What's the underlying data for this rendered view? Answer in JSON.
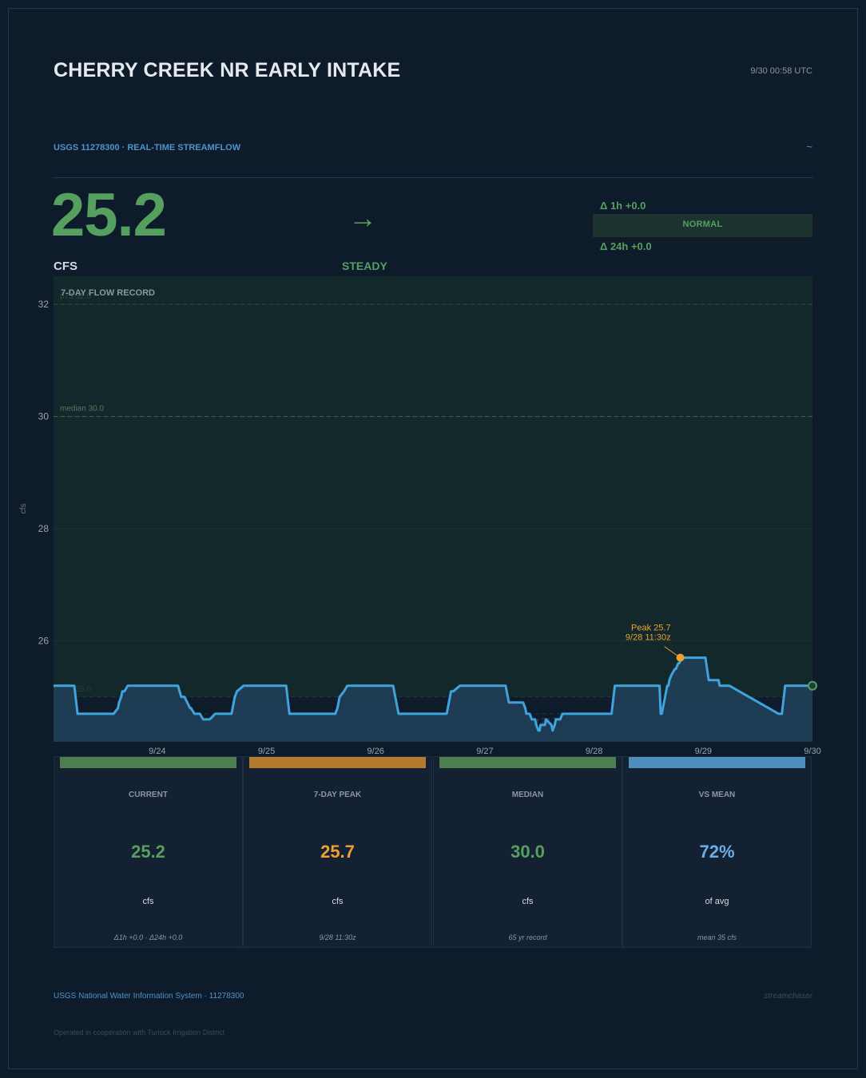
{
  "header": {
    "title": "CHERRY CREEK NR EARLY INTAKE",
    "timestamp": "9/30  00:58 UTC",
    "subtitle": "USGS 11278300  ·  REAL-TIME STREAMFLOW",
    "tilde": "~"
  },
  "current": {
    "value": "25.2",
    "unit": "CFS",
    "trend_arrow": "→",
    "trend_label": "STEADY",
    "delta_1h": "Δ 1h  +0.0",
    "delta_24h": "Δ 24h  +0.0",
    "status": "NORMAL"
  },
  "colors": {
    "accent_green": "#56a05f",
    "peak_orange": "#f0a030",
    "line_blue": "#3fa3dc",
    "mean_blue": "#6ab0e8"
  },
  "chart_data": {
    "type": "line",
    "title": "7-DAY FLOW RECORD",
    "ylabel": "cfs",
    "ylim": [
      24.2,
      32.5
    ],
    "yticks": [
      "26",
      "28",
      "30",
      "32"
    ],
    "xlim": [
      -0.95,
      6.0
    ],
    "xticks": [
      {
        "x": 0,
        "label": "9/24"
      },
      {
        "x": 1,
        "label": "9/25"
      },
      {
        "x": 2,
        "label": "9/26"
      },
      {
        "x": 3,
        "label": "9/27"
      },
      {
        "x": 4,
        "label": "9/28"
      },
      {
        "x": 5,
        "label": "9/29"
      },
      {
        "x": 6,
        "label": "9/30"
      }
    ],
    "grid": true,
    "band_upper": 32.0,
    "band_lower": 25.0,
    "reference_lines": [
      {
        "name": "median",
        "label": "median  30.0",
        "value": 30.0
      },
      {
        "name": "upper",
        "label": "p75  32.0",
        "value": 32.0
      },
      {
        "name": "lower",
        "label": "p25  25.0",
        "value": 25.0
      },
      {
        "name": "last_year",
        "label": "last year  24.7",
        "value": 24.7
      }
    ],
    "peak": {
      "x": 4.79,
      "value": 25.7,
      "label1": "Peak  25.7",
      "label2": "9/28  11:30z"
    },
    "series": [
      {
        "x": [
          -0.95,
          -0.76,
          -0.73,
          -0.4,
          -0.36,
          -0.35,
          -0.33,
          -0.32,
          -0.3,
          -0.27,
          0.19,
          0.22,
          0.25,
          0.3,
          0.31,
          0.34,
          0.35,
          0.39,
          0.42,
          0.48,
          0.53,
          0.68,
          0.69,
          0.7,
          0.71,
          0.73,
          0.79,
          1.18,
          1.21,
          1.63,
          1.65,
          1.67,
          1.71,
          1.74,
          2.16,
          2.21,
          2.65,
          2.66,
          2.68,
          2.69,
          2.71,
          2.77,
          3.19,
          3.21,
          3.22,
          3.35,
          3.37,
          3.38,
          3.39,
          3.41,
          3.43,
          3.46,
          3.47,
          3.49,
          3.5,
          3.51,
          3.53,
          3.55,
          3.56,
          3.61,
          3.62,
          3.64,
          3.65,
          3.69,
          3.71,
          3.72,
          3.74,
          4.16,
          4.19,
          4.6,
          4.61,
          4.62,
          4.63,
          4.64,
          4.65,
          4.66,
          4.67,
          4.68,
          4.69,
          4.71,
          4.74,
          4.75,
          4.77,
          4.78,
          4.8,
          4.82,
          4.98,
          5.02,
          5.05,
          5.07,
          5.14,
          5.15,
          5.18,
          5.24,
          5.69,
          5.72,
          5.75,
          6.0
        ],
        "values": [
          25.2,
          25.2,
          24.7,
          24.7,
          24.8,
          24.9,
          25.0,
          25.1,
          25.1,
          25.2,
          25.2,
          25.0,
          25.0,
          24.8,
          24.8,
          24.7,
          24.7,
          24.7,
          24.6,
          24.6,
          24.7,
          24.7,
          24.8,
          24.9,
          25.0,
          25.1,
          25.2,
          25.2,
          24.7,
          24.7,
          24.8,
          25.0,
          25.1,
          25.2,
          25.2,
          24.7,
          24.7,
          24.8,
          25.0,
          25.1,
          25.1,
          25.2,
          25.2,
          25.0,
          24.9,
          24.9,
          24.8,
          24.7,
          24.7,
          24.7,
          24.6,
          24.6,
          24.5,
          24.4,
          24.4,
          24.5,
          24.5,
          24.5,
          24.6,
          24.5,
          24.4,
          24.5,
          24.6,
          24.6,
          24.7,
          24.7,
          24.7,
          24.7,
          25.2,
          25.2,
          24.7,
          24.7,
          24.8,
          24.9,
          25.0,
          25.1,
          25.2,
          25.2,
          25.3,
          25.4,
          25.5,
          25.5,
          25.6,
          25.6,
          25.7,
          25.7,
          25.7,
          25.7,
          25.3,
          25.3,
          25.3,
          25.2,
          25.2,
          25.2,
          24.7,
          24.7,
          25.2,
          25.2
        ]
      }
    ]
  },
  "cards": [
    {
      "label": "CURRENT",
      "value": "25.2",
      "unit": "cfs",
      "footer": "Δ1h +0.0  ·  Δ24h +0.0",
      "bar_color": "#4e7d50",
      "value_color": "#56a05f"
    },
    {
      "label": "7-DAY PEAK",
      "value": "25.7",
      "unit": "cfs",
      "footer": "9/28 11:30z",
      "bar_color": "#b47a30",
      "value_color": "#f0a030"
    },
    {
      "label": "MEDIAN",
      "value": "30.0",
      "unit": "cfs",
      "footer": "65 yr record",
      "bar_color": "#4e7d50",
      "value_color": "#56a05f"
    },
    {
      "label": "VS MEAN",
      "value": "72%",
      "unit": "of avg",
      "footer": "mean 35 cfs",
      "bar_color": "#4f8fc0",
      "value_color": "#6ab0e8"
    }
  ],
  "footer": {
    "source": "USGS National Water Information System  ·  11278300",
    "brand": "streamchaser",
    "cooperation": "Operated in cooperation with Turlock Irrigation District"
  }
}
